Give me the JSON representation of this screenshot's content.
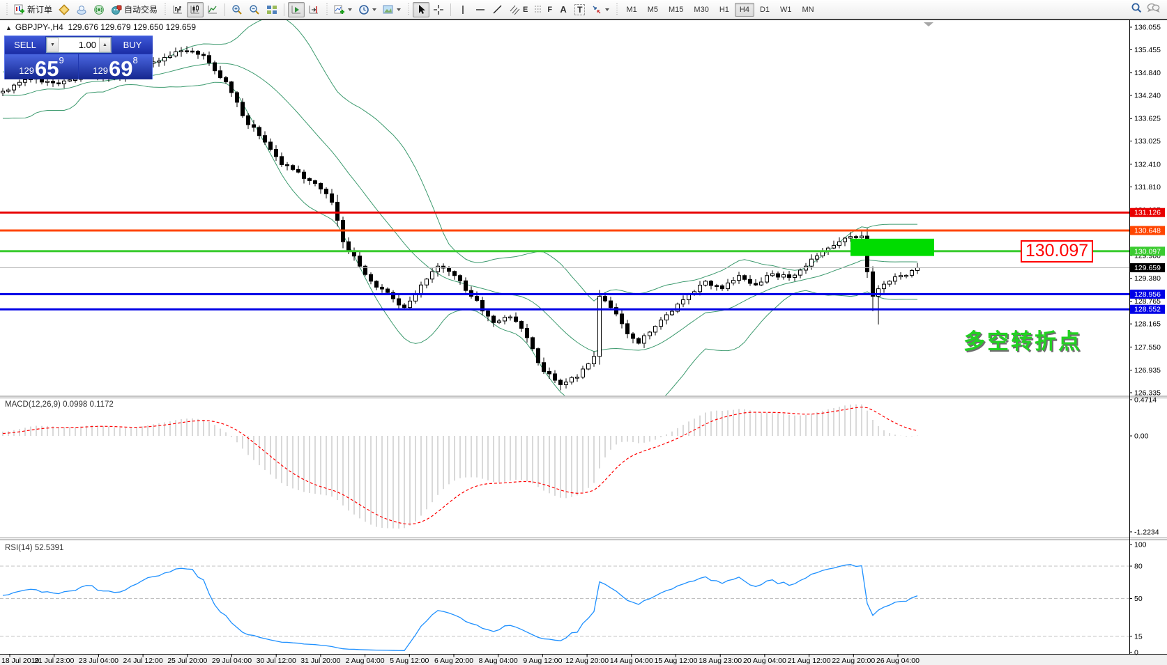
{
  "toolbar": {
    "new_order_label": "新订单",
    "autotrading_label": "自动交易",
    "timeframes": [
      "M1",
      "M5",
      "M15",
      "M30",
      "H1",
      "H4",
      "D1",
      "W1",
      "MN"
    ],
    "active_timeframe": "H4",
    "tool_letters": {
      "channel": "E",
      "fibo": "F",
      "text": "A",
      "label": "T"
    }
  },
  "symbol_bar": {
    "marker": "▲",
    "symbol": "GBPJPY-,H4",
    "ohlc": "129.676 129.679 129.650 129.659"
  },
  "trade_panel": {
    "sell_label": "SELL",
    "buy_label": "BUY",
    "volume": "1.00",
    "sell_small": "129",
    "sell_big": "65",
    "sell_sup": "9",
    "buy_small": "129",
    "buy_big": "69",
    "buy_sup": "8"
  },
  "annotations": {
    "price_callout": "130.097",
    "cn_note": "多空转折点"
  },
  "indicators": {
    "macd_label": "MACD(12,26,9) 0.0998 0.1172",
    "rsi_label": "RSI(14) 52.5391"
  },
  "axes": {
    "price_ticks": [
      "136.055",
      "135.455",
      "134.840",
      "134.240",
      "133.625",
      "133.025",
      "132.410",
      "131.810",
      "131.195",
      "130.595",
      "129.980",
      "129.380",
      "128.765",
      "128.165",
      "127.550",
      "126.935",
      "126.335"
    ],
    "macd_ticks": [
      "0.4714",
      "0.00",
      "-1.2234"
    ],
    "rsi_ticks": [
      "100",
      "80",
      "50",
      "15",
      "0"
    ],
    "rsi_levels": [
      80,
      50,
      15
    ],
    "time_labels": [
      "18 Jul 2019",
      "21 Jul 23:00",
      "23 Jul 04:00",
      "24 Jul 12:00",
      "25 Jul 20:00",
      "29 Jul 04:00",
      "30 Jul 12:00",
      "31 Jul 20:00",
      "2 Aug 04:00",
      "5 Aug 12:00",
      "6 Aug 20:00",
      "8 Aug 04:00",
      "9 Aug 12:00",
      "12 Aug 20:00",
      "14 Aug 04:00",
      "15 Aug 12:00",
      "18 Aug 23:00",
      "20 Aug 04:00",
      "21 Aug 12:00",
      "22 Aug 20:00",
      "26 Aug 04:00"
    ]
  },
  "colors": {
    "bollinger": "#3C9A6E",
    "macd_histogram": "#c9c9c9",
    "macd_signal": "#ff0000",
    "rsi_line": "#1e90ff",
    "dashed_level": "#c0c0c0",
    "current_price_line": "#b8b8b8",
    "current_price_tag": "#000000"
  },
  "chart_data": {
    "type": "candlestick",
    "instrument": "GBPJPY-",
    "timeframe": "H4",
    "current_price": 129.659,
    "price_axis_range": [
      126.335,
      136.055
    ],
    "bar_count": 165,
    "price_path": [
      [
        0,
        134.35
      ],
      [
        5,
        134.7
      ],
      [
        10,
        134.55
      ],
      [
        15,
        134.85
      ],
      [
        20,
        134.7
      ],
      [
        25,
        135.0
      ],
      [
        29,
        135.25
      ],
      [
        33,
        135.42
      ],
      [
        36,
        135.3
      ],
      [
        40,
        134.6
      ],
      [
        43,
        133.7
      ],
      [
        47,
        133.0
      ],
      [
        50,
        132.4
      ],
      [
        53,
        132.2
      ],
      [
        56,
        131.9
      ],
      [
        59,
        131.4
      ],
      [
        61,
        130.35
      ],
      [
        64,
        129.7
      ],
      [
        66,
        129.3
      ],
      [
        69,
        129.0
      ],
      [
        72,
        128.6
      ],
      [
        75,
        129.2
      ],
      [
        78,
        129.7
      ],
      [
        81,
        129.45
      ],
      [
        84,
        128.9
      ],
      [
        88,
        128.2
      ],
      [
        91,
        128.35
      ],
      [
        94,
        127.8
      ],
      [
        97,
        126.9
      ],
      [
        100,
        126.55
      ],
      [
        103,
        126.75
      ],
      [
        106,
        127.3
      ],
      [
        107,
        128.9
      ],
      [
        109,
        128.6
      ],
      [
        112,
        127.9
      ],
      [
        114,
        127.65
      ],
      [
        117,
        128.1
      ],
      [
        120,
        128.5
      ],
      [
        123,
        128.95
      ],
      [
        126,
        129.3
      ],
      [
        129,
        129.1
      ],
      [
        132,
        129.45
      ],
      [
        135,
        129.2
      ],
      [
        138,
        129.5
      ],
      [
        141,
        129.4
      ],
      [
        144,
        129.7
      ],
      [
        147,
        130.1
      ],
      [
        150,
        130.35
      ],
      [
        154,
        130.5
      ],
      [
        155,
        129.55
      ],
      [
        156,
        128.9
      ],
      [
        157,
        129.1
      ],
      [
        159,
        129.3
      ],
      [
        161,
        129.45
      ],
      [
        164,
        129.66
      ]
    ],
    "long_wicks": [
      {
        "bar": 100,
        "low": 126.4
      },
      {
        "bar": 156,
        "low": 128.5
      },
      {
        "bar": 157,
        "low": 128.15
      }
    ],
    "horizontal_levels": [
      {
        "price": 131.126,
        "label": "131.126",
        "color": "#e80000",
        "width": 3
      },
      {
        "price": 130.648,
        "label": "130.648",
        "color": "#ff4500",
        "width": 3
      },
      {
        "price": 130.097,
        "label": "130.097",
        "color": "#3bcb30",
        "width": 3
      },
      {
        "price": 128.956,
        "label": "128.956",
        "color": "#0000e6",
        "width": 3
      },
      {
        "price": 128.552,
        "label": "128.552",
        "color": "#0000e6",
        "width": 3
      }
    ],
    "current_price_label": "129.659",
    "highlight_rect": {
      "price_top": 130.43,
      "price_bottom": 129.97,
      "bar_from": 152,
      "bar_to": 167,
      "color": "#00dc00"
    },
    "bollinger": {
      "period": 20,
      "deviation": 2
    },
    "macd": {
      "fast": 12,
      "slow": 26,
      "signal": 9,
      "value": 0.0998,
      "signal_value": 0.1172,
      "axis_max": 0.4714,
      "axis_min": -1.2234
    },
    "rsi": {
      "period": 14,
      "value": 52.5391,
      "axis": [
        0,
        100
      ],
      "levels": [
        80,
        50,
        15
      ]
    }
  }
}
